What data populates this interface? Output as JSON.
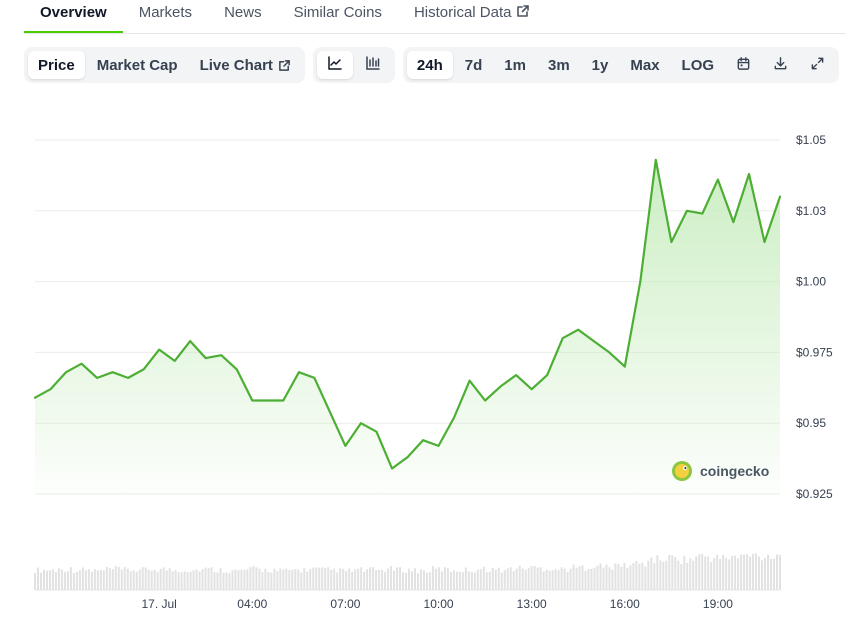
{
  "tabs": [
    "Overview",
    "Markets",
    "News",
    "Similar Coins",
    "Historical Data"
  ],
  "toolbar": {
    "metric_buttons": [
      "Price",
      "Market Cap",
      "Live Chart"
    ],
    "range_buttons": [
      "24h",
      "7d",
      "1m",
      "3m",
      "1y",
      "Max",
      "LOG"
    ]
  },
  "icons": {
    "line_chart": "line-chart-icon",
    "candle_chart": "candlestick-chart-icon",
    "calendar": "calendar-icon",
    "download": "download-icon",
    "fullscreen": "fullscreen-icon",
    "external": "external-link-icon"
  },
  "colors": {
    "accent": "#4bcc00",
    "line": "#4caf34",
    "area_top": "#c9edc0",
    "volume": "#e2e2e2",
    "grid": "#ebebeb"
  },
  "watermark": "coingecko",
  "chart_data": {
    "type": "area",
    "x_ticks": [
      "17. Jul",
      "04:00",
      "07:00",
      "10:00",
      "13:00",
      "16:00",
      "19:00"
    ],
    "y_ticks": [
      "$1.05",
      "$1.03",
      "$1.00",
      "$0.975",
      "$0.95",
      "$0.925"
    ],
    "y_tick_values": [
      1.05,
      1.025,
      1.0,
      0.975,
      0.95,
      0.925
    ],
    "ylim": [
      0.925,
      1.05
    ],
    "grid": true,
    "x": [
      0,
      0.5,
      1,
      1.5,
      2,
      2.5,
      3,
      3.5,
      4,
      4.5,
      5,
      5.5,
      6,
      6.5,
      7,
      7.5,
      8,
      8.5,
      9,
      9.5,
      10,
      10.5,
      11,
      11.5,
      12,
      12.5,
      13,
      13.5,
      14,
      14.5,
      15,
      15.5,
      16,
      16.5,
      17,
      17.5,
      18,
      18.5,
      19,
      19.5,
      20,
      20.5,
      21,
      21.5,
      22,
      22.5,
      23,
      23.5,
      24
    ],
    "price": [
      0.959,
      0.962,
      0.968,
      0.971,
      0.966,
      0.968,
      0.966,
      0.969,
      0.976,
      0.972,
      0.979,
      0.973,
      0.974,
      0.969,
      0.958,
      0.958,
      0.958,
      0.968,
      0.966,
      0.954,
      0.942,
      0.95,
      0.947,
      0.934,
      0.938,
      0.944,
      0.942,
      0.952,
      0.965,
      0.958,
      0.963,
      0.967,
      0.962,
      0.967,
      0.98,
      0.983,
      0.979,
      0.975,
      0.97,
      1.0,
      1.043,
      1.014,
      1.025,
      1.024,
      1.036,
      1.021,
      1.038,
      1.014,
      1.03
    ],
    "volume": [
      0.25,
      0.25,
      0.26,
      0.25,
      0.24,
      0.26,
      0.25,
      0.25,
      0.26,
      0.25,
      0.25,
      0.26,
      0.25,
      0.24,
      0.26,
      0.25,
      0.24,
      0.25,
      0.26,
      0.25,
      0.24,
      0.25,
      0.25,
      0.26,
      0.25,
      0.24,
      0.26,
      0.25,
      0.25,
      0.26,
      0.25,
      0.27,
      0.28,
      0.27,
      0.26,
      0.28,
      0.3,
      0.29,
      0.31,
      0.33,
      0.38,
      0.4,
      0.38,
      0.42,
      0.4,
      0.41,
      0.43,
      0.42,
      0.45
    ]
  }
}
